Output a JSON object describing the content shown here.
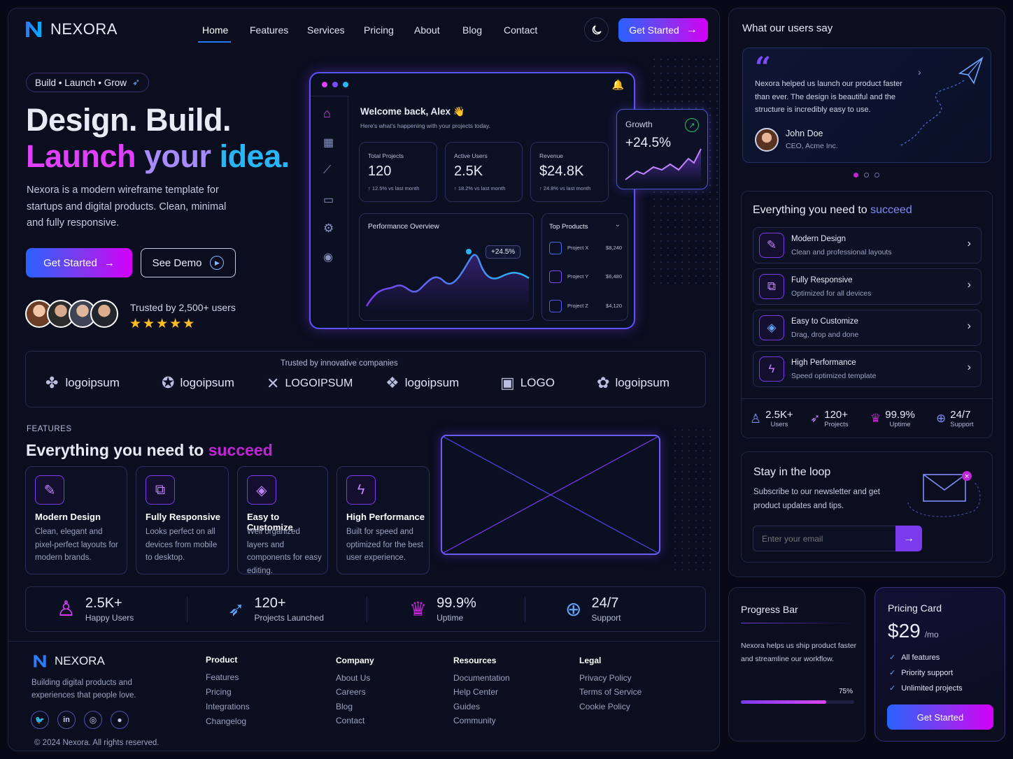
{
  "brand": {
    "name": "NEXORA"
  },
  "nav": {
    "items": [
      "Home",
      "Features",
      "Services",
      "Pricing",
      "About",
      "Blog",
      "Contact"
    ],
    "cta": "Get Started"
  },
  "hero": {
    "tag": "Build • Launch • Grow",
    "title_line1": "Design. Build.",
    "title_launch": "Launch",
    "title_your": "your",
    "title_idea": "idea.",
    "desc": "Nexora is a modern wireframe template for startups and digital products. Clean, minimal and fully responsive.",
    "cta_primary": "Get Started",
    "cta_secondary": "See Demo",
    "trusted": "Trusted by 2,500+ users",
    "rating": "★★★★★"
  },
  "dashboard": {
    "welcome": "Welcome back, Alex 👋",
    "subtitle": "Here's what's happening with your projects today.",
    "stats": [
      {
        "label": "Total Projects",
        "value": "120",
        "change": "↑ 12.5% vs last month"
      },
      {
        "label": "Active Users",
        "value": "2.5K",
        "change": "↑ 18.2% vs last month"
      },
      {
        "label": "Revenue",
        "value": "$24.8K",
        "change": "↑ 24.8% vs last month"
      }
    ],
    "growth": {
      "label": "Growth",
      "value": "+24.5%"
    },
    "performance": {
      "title": "Performance Overview",
      "badge": "+24.5%"
    },
    "top_products": {
      "title": "Top Products",
      "items": [
        {
          "name": "Project X",
          "value": "$8,240"
        },
        {
          "name": "Project Y",
          "value": "$6,480"
        },
        {
          "name": "Project Z",
          "value": "$4,120"
        }
      ]
    }
  },
  "logos": {
    "title": "Trusted by innovative companies",
    "items": [
      "logoipsum",
      "logoipsum",
      "LOGOIPSUM",
      "logoipsum",
      "LOGO",
      "logoipsum"
    ]
  },
  "features": {
    "eyebrow": "FEATURES",
    "heading": "Everything you need to",
    "heading_accent": "succeed",
    "cards": [
      {
        "title": "Modern Design",
        "desc": "Clean, elegant and pixel-perfect layouts for modern brands."
      },
      {
        "title": "Fully Responsive",
        "desc": "Looks perfect on all devices from mobile to desktop."
      },
      {
        "title": "Easy to Customize",
        "desc": "Well organized layers and components for easy editing."
      },
      {
        "title": "High Performance",
        "desc": "Built for speed and optimized for the best user experience."
      }
    ]
  },
  "stats_bar": [
    {
      "value": "2.5K+",
      "label": "Happy Users"
    },
    {
      "value": "120+",
      "label": "Projects Launched"
    },
    {
      "value": "99.9%",
      "label": "Uptime"
    },
    {
      "value": "24/7",
      "label": "Support"
    }
  ],
  "footer": {
    "tagline": "Building digital products and experiences that people love.",
    "copyright": "© 2024 Nexora. All rights reserved.",
    "columns": [
      {
        "title": "Product",
        "links": [
          "Features",
          "Pricing",
          "Integrations",
          "Changelog"
        ]
      },
      {
        "title": "Company",
        "links": [
          "About Us",
          "Careers",
          "Blog",
          "Contact"
        ]
      },
      {
        "title": "Resources",
        "links": [
          "Documentation",
          "Help Center",
          "Guides",
          "Community"
        ]
      },
      {
        "title": "Legal",
        "links": [
          "Privacy Policy",
          "Terms of Service",
          "Cookie Policy"
        ]
      }
    ]
  },
  "testimonials": {
    "title": "What our users say",
    "quote": "Nexora helped us launch our product faster than ever. The design is beautiful and the structure is incredibly easy to use.",
    "name": "John Doe",
    "role": "CEO, Acme Inc."
  },
  "side_features": {
    "heading": "Everything you need to",
    "accent": "succeed",
    "items": [
      {
        "title": "Modern Design",
        "desc": "Clean and professional layouts"
      },
      {
        "title": "Fully Responsive",
        "desc": "Optimized for all devices"
      },
      {
        "title": "Easy to Customize",
        "desc": "Drag, drop and done"
      },
      {
        "title": "High Performance",
        "desc": "Speed optimized template"
      }
    ],
    "stats": [
      {
        "value": "2.5K+",
        "label": "Users"
      },
      {
        "value": "120+",
        "label": "Projects"
      },
      {
        "value": "99.9%",
        "label": "Uptime"
      },
      {
        "value": "24/7",
        "label": "Support"
      }
    ]
  },
  "newsletter": {
    "title": "Stay in the loop",
    "desc": "Subscribe to our newsletter and get product updates and tips.",
    "placeholder": "Enter your email"
  },
  "progress": {
    "title": "Progress Bar",
    "desc": "Nexora helps us ship product faster and streamline our workflow.",
    "label": "75%",
    "value": 0.75
  },
  "pricing": {
    "title": "Pricing Card",
    "price": "$29",
    "period": "/mo",
    "features": [
      "All features",
      "Priority support",
      "Unlimited projects"
    ],
    "cta": "Get Started"
  },
  "colors": {
    "accent": "#7c3aed",
    "blue": "#2962ff",
    "pink": "#e040fb"
  }
}
